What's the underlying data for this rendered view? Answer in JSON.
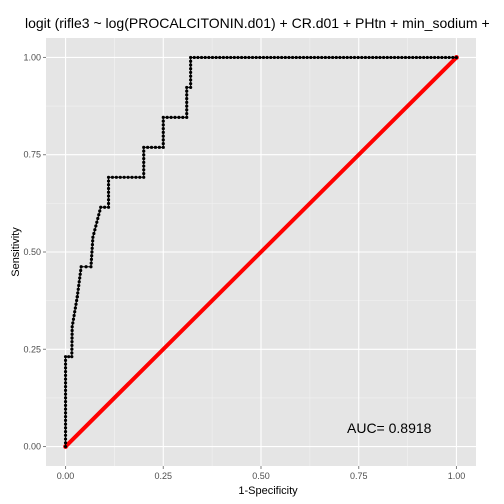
{
  "chart_data": {
    "type": "line",
    "title": "logit (rifle3 ~ log(PROCALCITONIN.d01) + CR.d01 + PHtn + min_sodium +",
    "xlabel": "1-Specificity",
    "ylabel": "Sensitivity",
    "xlim": [
      -0.05,
      1.05
    ],
    "ylim": [
      -0.05,
      1.05
    ],
    "x_ticks": [
      0.0,
      0.25,
      0.5,
      0.75,
      1.0
    ],
    "y_ticks": [
      0.0,
      0.25,
      0.5,
      0.75,
      1.0
    ],
    "x_tick_labels": [
      "0.00",
      "0.25",
      "0.50",
      "0.75",
      "1.00"
    ],
    "y_tick_labels": [
      "0.00",
      "0.25",
      "0.50",
      "0.75",
      "1.00"
    ],
    "grid": true,
    "annotation": "AUC= 0.8918",
    "colors": {
      "panel_background": "#e5e5e5",
      "grid": "#ffffff",
      "roc_curve": "#000000",
      "reference_line": "#ff0000"
    },
    "series": [
      {
        "role": "roc",
        "x": [
          0,
          0,
          0,
          0,
          0.008,
          0.016,
          0.017,
          0.03,
          0.03,
          0.04,
          0.065,
          0.07,
          0.09,
          0.11,
          0.11,
          0.2,
          0.2,
          0.25,
          0.25,
          0.31,
          0.31,
          0.32,
          0.32,
          1.0
        ],
        "y": [
          0,
          0.077,
          0.154,
          0.231,
          0.231,
          0.231,
          0.308,
          0.385,
          0.385,
          0.462,
          0.462,
          0.538,
          0.615,
          0.615,
          0.692,
          0.692,
          0.769,
          0.769,
          0.846,
          0.846,
          0.923,
          0.923,
          1.0,
          1.0
        ]
      },
      {
        "role": "reference",
        "x": [
          0,
          1
        ],
        "y": [
          0,
          1
        ]
      }
    ]
  }
}
